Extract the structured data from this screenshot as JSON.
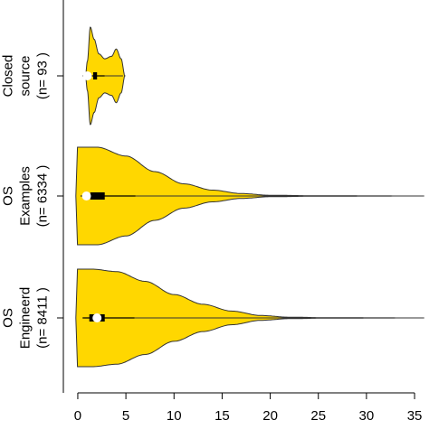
{
  "chart_data": {
    "type": "violin",
    "orientation": "horizontal",
    "title": "",
    "xlabel": "",
    "ylabel": "",
    "xlim": [
      -1.5,
      36.5
    ],
    "xticks": [
      0,
      5,
      10,
      15,
      20,
      25,
      30,
      35
    ],
    "fill_color": "#FFD700",
    "outline_color": "#333333",
    "groups": [
      {
        "label_lines": [
          "Closed",
          "source",
          "(n= 93 )"
        ],
        "whisker": [
          0.5,
          2.8
        ],
        "box": [
          1.6,
          2.0
        ],
        "median": 1.0,
        "outlier_max": 4.7,
        "density_profile": [
          [
            0.8,
            0.0
          ],
          [
            1.0,
            0.3
          ],
          [
            1.3,
            1.0
          ],
          [
            1.7,
            0.75
          ],
          [
            2.2,
            0.45
          ],
          [
            2.8,
            0.35
          ],
          [
            3.5,
            0.4
          ],
          [
            4.0,
            0.55
          ],
          [
            4.5,
            0.35
          ],
          [
            4.9,
            0.0
          ]
        ]
      },
      {
        "label_lines": [
          "OS",
          "Examples",
          "(n= 6334 )"
        ],
        "whisker": [
          0.3,
          6.0
        ],
        "box": [
          1.3,
          2.8
        ],
        "median": 0.9,
        "outlier_max": 35.9,
        "density_profile": [
          [
            -0.2,
            0.0
          ],
          [
            -0.1,
            1.0
          ],
          [
            2.0,
            1.0
          ],
          [
            5.0,
            0.82
          ],
          [
            8.0,
            0.5
          ],
          [
            11.0,
            0.25
          ],
          [
            14.0,
            0.12
          ],
          [
            17.0,
            0.05
          ],
          [
            20.0,
            0.015
          ],
          [
            25.0,
            0.004
          ],
          [
            36.0,
            0.0
          ]
        ]
      },
      {
        "label_lines": [
          "OS",
          "Engineerd",
          "(n= 8411 )"
        ],
        "whisker": [
          0.5,
          5.9
        ],
        "box": [
          1.2,
          2.8
        ],
        "median": 2.0,
        "outlier_max": 35.9,
        "density_profile": [
          [
            -0.2,
            0.0
          ],
          [
            -0.1,
            1.0
          ],
          [
            1.5,
            1.0
          ],
          [
            4.0,
            0.95
          ],
          [
            7.0,
            0.75
          ],
          [
            10.0,
            0.48
          ],
          [
            13.0,
            0.28
          ],
          [
            16.0,
            0.14
          ],
          [
            19.0,
            0.05
          ],
          [
            22.0,
            0.015
          ],
          [
            26.0,
            0.004
          ],
          [
            36.0,
            0.0
          ]
        ]
      }
    ]
  }
}
